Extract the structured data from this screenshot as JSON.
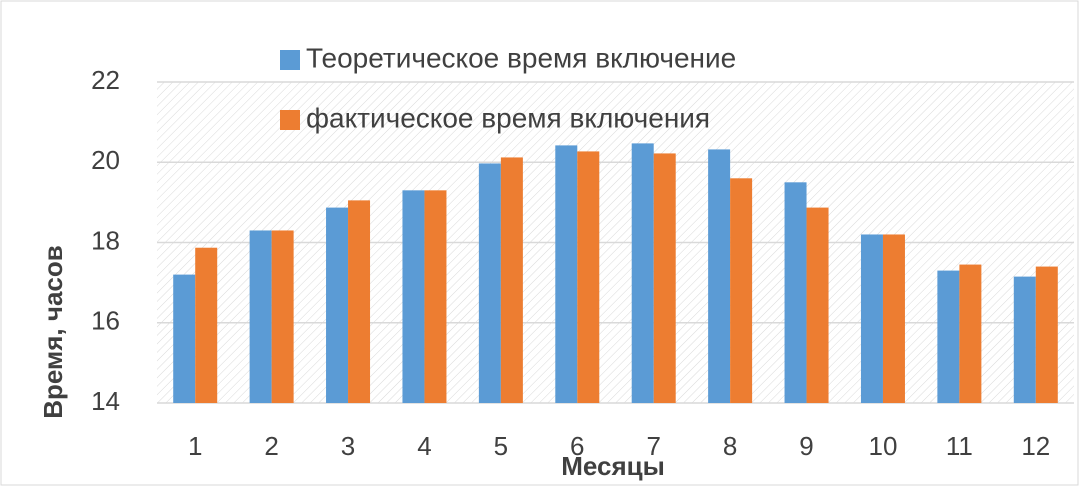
{
  "chart_data": {
    "type": "bar",
    "x_label": "Месяцы",
    "y_label": "Время, часов",
    "categories": [
      "1",
      "2",
      "3",
      "4",
      "5",
      "6",
      "7",
      "8",
      "9",
      "10",
      "11",
      "12"
    ],
    "series": [
      {
        "name": "Теоретическое время включение",
        "color": "#5b9bd5",
        "values": [
          17.2,
          18.3,
          18.87,
          19.3,
          19.97,
          20.42,
          20.47,
          20.32,
          19.5,
          18.2,
          17.3,
          17.15
        ]
      },
      {
        "name": "фактическое время включения",
        "color": "#ed7d31",
        "values": [
          17.87,
          18.3,
          19.05,
          19.3,
          20.12,
          20.27,
          20.22,
          19.6,
          18.87,
          18.2,
          17.45,
          17.4
        ]
      }
    ],
    "ylim": [
      14,
      22
    ],
    "yticks": [
      14,
      16,
      18,
      20,
      22
    ],
    "grid": true
  }
}
